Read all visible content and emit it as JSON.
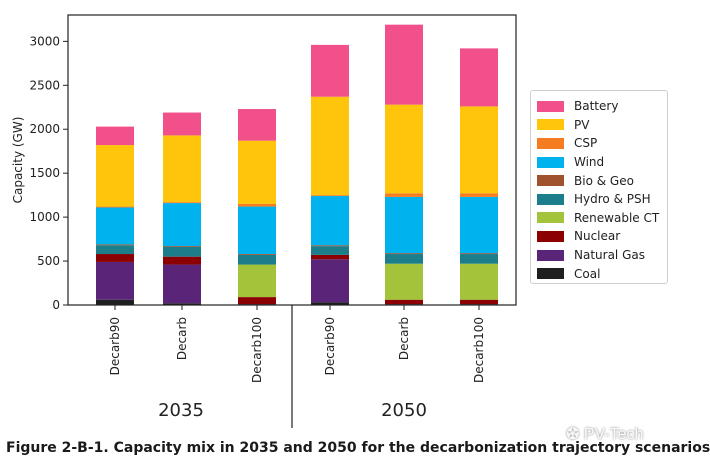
{
  "chart_data": {
    "type": "bar",
    "stacked": true,
    "ylabel": "Capacity (GW)",
    "xlabel": "",
    "ylim": [
      0,
      3300
    ],
    "yticks": [
      0,
      500,
      1000,
      1500,
      2000,
      2500,
      3000
    ],
    "grid": false,
    "legend_position": "right",
    "categories": [
      "Decarb90",
      "Decarb",
      "Decarb100",
      "Decarb90",
      "Decarb",
      "Decarb100"
    ],
    "groups": [
      {
        "label": "2035",
        "categories": [
          "Decarb90",
          "Decarb",
          "Decarb100"
        ]
      },
      {
        "label": "2050",
        "categories": [
          "Decarb90",
          "Decarb",
          "Decarb100"
        ]
      }
    ],
    "series": [
      {
        "name": "Coal",
        "color": "#1f1f1f",
        "values": [
          60,
          20,
          10,
          30,
          10,
          10
        ]
      },
      {
        "name": "Natural Gas",
        "color": "#5a2578",
        "values": [
          430,
          440,
          0,
          490,
          0,
          0
        ]
      },
      {
        "name": "Nuclear",
        "color": "#8b0000",
        "values": [
          90,
          90,
          80,
          50,
          50,
          50
        ]
      },
      {
        "name": "Renewable CT",
        "color": "#a3c43a",
        "values": [
          0,
          0,
          370,
          0,
          410,
          410
        ]
      },
      {
        "name": "Hydro & PSH",
        "color": "#1b7e8a",
        "values": [
          100,
          110,
          110,
          100,
          110,
          110
        ]
      },
      {
        "name": "Bio & Geo",
        "color": "#a0522d",
        "values": [
          10,
          10,
          10,
          10,
          10,
          10
        ]
      },
      {
        "name": "Wind",
        "color": "#00b2ee",
        "values": [
          420,
          490,
          540,
          560,
          640,
          640
        ]
      },
      {
        "name": "CSP",
        "color": "#f57c20",
        "values": [
          10,
          10,
          30,
          10,
          40,
          40
        ]
      },
      {
        "name": "PV",
        "color": "#ffc40c",
        "values": [
          700,
          760,
          720,
          1120,
          1010,
          990
        ]
      },
      {
        "name": "Battery",
        "color": "#f2508a",
        "values": [
          210,
          260,
          360,
          590,
          910,
          660
        ]
      }
    ],
    "legend_order": [
      "Battery",
      "PV",
      "CSP",
      "Wind",
      "Bio & Geo",
      "Hydro & PSH",
      "Renewable CT",
      "Nuclear",
      "Natural Gas",
      "Coal"
    ]
  },
  "caption": "Figure 2-B-1. Capacity mix in 2035 and 2050 for the decarbonization trajectory scenarios",
  "watermark": "PV-Tech"
}
